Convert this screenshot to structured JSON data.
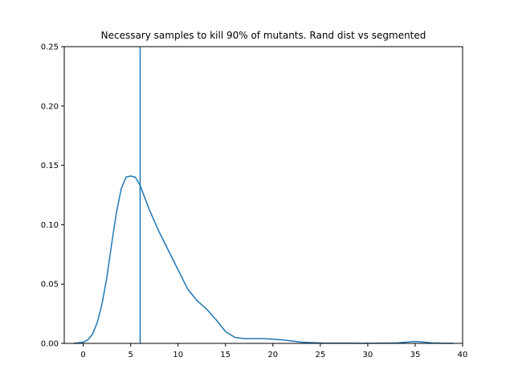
{
  "chart_data": {
    "type": "line",
    "title": "Necessary samples to kill 90% of mutants. Rand dist vs segmented",
    "xlabel": "",
    "ylabel": "",
    "xlim": [
      -2.0,
      40.0
    ],
    "ylim": [
      0.0,
      0.25
    ],
    "x_ticks": [
      0,
      5,
      10,
      15,
      20,
      25,
      30,
      35,
      40
    ],
    "x_tick_labels": [
      "0",
      "5",
      "10",
      "15",
      "20",
      "25",
      "30",
      "35",
      "40"
    ],
    "y_ticks": [
      0.0,
      0.05,
      0.1,
      0.15,
      0.2,
      0.25
    ],
    "y_tick_labels": [
      "0.00",
      "0.05",
      "0.10",
      "0.15",
      "0.20",
      "0.25"
    ],
    "grid": false,
    "colors": {
      "series": "#1f77b4"
    },
    "series": [
      {
        "x": [
          -1.0,
          0.0,
          0.5,
          1.0,
          1.5,
          2.0,
          2.5,
          3.0,
          3.5,
          4.0,
          4.5,
          5.0,
          5.5,
          6.0,
          7.0,
          8.0,
          9.0,
          10.0,
          11.0,
          12.0,
          13.0,
          14.0,
          15.0,
          16.0,
          17.0,
          18.0,
          19.0,
          20.0,
          21.0,
          22.0,
          23.0,
          25.0,
          30.0,
          33.0,
          34.0,
          35.0,
          36.0,
          37.0,
          38.0,
          39.0
        ],
        "y": [
          0.0,
          0.001,
          0.003,
          0.008,
          0.018,
          0.034,
          0.056,
          0.084,
          0.11,
          0.13,
          0.14,
          0.141,
          0.14,
          0.133,
          0.112,
          0.094,
          0.078,
          0.062,
          0.046,
          0.036,
          0.029,
          0.02,
          0.01,
          0.005,
          0.004,
          0.004,
          0.004,
          0.0035,
          0.003,
          0.002,
          0.001,
          0.0003,
          0.0001,
          0.0003,
          0.001,
          0.0016,
          0.001,
          0.0003,
          0.0001,
          0.0
        ]
      }
    ],
    "vline": {
      "x": 6.0
    }
  }
}
